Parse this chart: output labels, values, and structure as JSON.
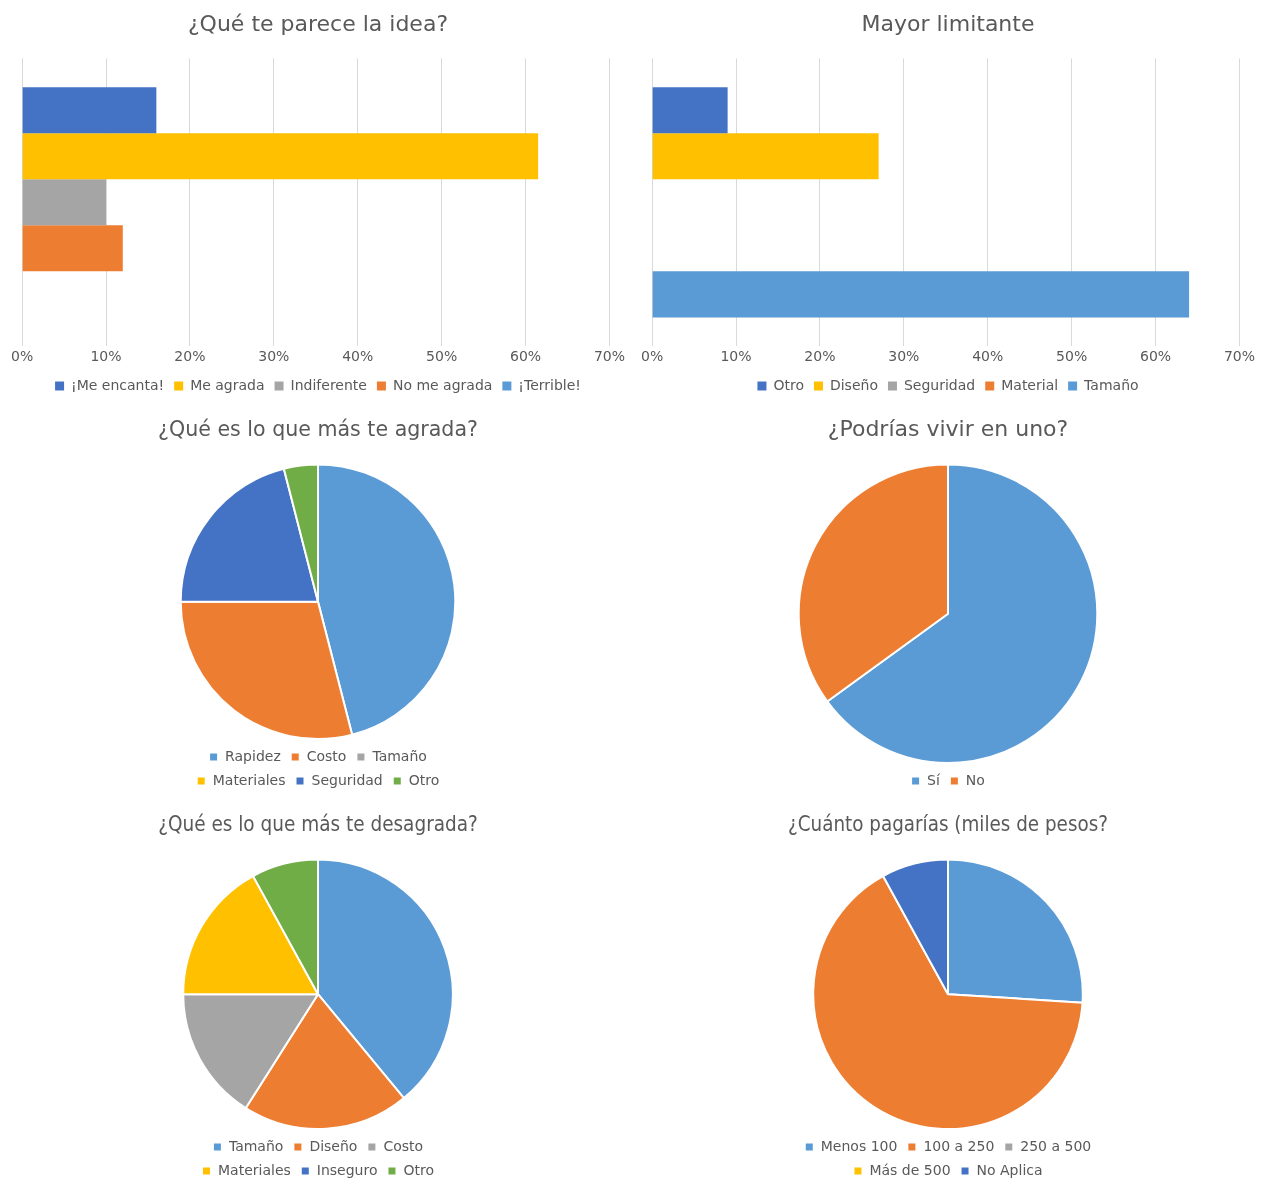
{
  "chart_data": [
    {
      "type": "bar",
      "orientation": "horizontal",
      "title": "¿Qué te parece la idea?",
      "categories": [
        null
      ],
      "legend": "bottom",
      "grid": "x",
      "xlim": [
        0,
        70
      ],
      "xticks": [
        {
          "value": 0,
          "label": "0%"
        },
        {
          "value": 10,
          "label": "10%"
        },
        {
          "value": 20,
          "label": "20%"
        },
        {
          "value": 30,
          "label": "30%"
        },
        {
          "value": 40,
          "label": "40%"
        },
        {
          "value": 50,
          "label": "50%"
        },
        {
          "value": 60,
          "label": "60%"
        },
        {
          "value": 70,
          "label": "70%"
        }
      ],
      "series": [
        {
          "name": "¡Me encanta!",
          "color": "#4472c4",
          "values": [
            16
          ]
        },
        {
          "name": "Me agrada",
          "color": "#ffc000",
          "values": [
            61.5
          ]
        },
        {
          "name": "Indiferente",
          "color": "#a5a5a5",
          "values": [
            10
          ]
        },
        {
          "name": "No me agrada",
          "color": "#ed7d31",
          "values": [
            12
          ]
        },
        {
          "name": "¡Terrible!",
          "color": "#5b9bd5",
          "values": [
            0
          ]
        }
      ]
    },
    {
      "type": "bar",
      "orientation": "horizontal",
      "title": "Mayor limitante",
      "categories": [
        null
      ],
      "legend": "bottom",
      "grid": "x",
      "xlim": [
        0,
        70
      ],
      "xticks": [
        {
          "value": 0,
          "label": "0%"
        },
        {
          "value": 10,
          "label": "10%"
        },
        {
          "value": 20,
          "label": "20%"
        },
        {
          "value": 30,
          "label": "30%"
        },
        {
          "value": 40,
          "label": "40%"
        },
        {
          "value": 50,
          "label": "50%"
        },
        {
          "value": 60,
          "label": "60%"
        },
        {
          "value": 70,
          "label": "70%"
        }
      ],
      "series": [
        {
          "name": "Otro",
          "color": "#4472c4",
          "values": [
            9
          ]
        },
        {
          "name": "Diseño",
          "color": "#ffc000",
          "values": [
            27
          ]
        },
        {
          "name": "Seguridad",
          "color": "#a5a5a5",
          "values": [
            0
          ]
        },
        {
          "name": "Material",
          "color": "#ed7d31",
          "values": [
            0
          ]
        },
        {
          "name": "Tamaño",
          "color": "#5b9bd5",
          "values": [
            64
          ]
        }
      ]
    },
    {
      "type": "pie",
      "title": "¿Qué es lo que más te agrada?",
      "legend": "bottom",
      "categories": [
        "Rapidez",
        "Costo",
        "Tamaño",
        "Materiales",
        "Seguridad",
        "Otro"
      ],
      "values": [
        46,
        29,
        0,
        0,
        21,
        4
      ],
      "colors": [
        "#5b9bd5",
        "#ed7d31",
        "#a5a5a5",
        "#ffc000",
        "#4472c4",
        "#70ad47"
      ]
    },
    {
      "type": "pie",
      "title": "¿Podrías vivir en uno?",
      "legend": "bottom",
      "categories": [
        "Sí",
        "No"
      ],
      "values": [
        65,
        35
      ],
      "colors": [
        "#5b9bd5",
        "#ed7d31"
      ]
    },
    {
      "type": "pie",
      "title": "¿Qué es lo que más te desagrada?",
      "legend": "bottom",
      "categories": [
        "Tamaño",
        "Diseño",
        "Costo",
        "Materiales",
        "Inseguro",
        "Otro"
      ],
      "values": [
        39,
        20,
        16,
        17,
        0,
        8
      ],
      "colors": [
        "#5b9bd5",
        "#ed7d31",
        "#a5a5a5",
        "#ffc000",
        "#4472c4",
        "#70ad47"
      ]
    },
    {
      "type": "pie",
      "title": "¿Cuánto pagarías (miles de pesos?",
      "legend": "bottom",
      "categories": [
        "Menos 100",
        "100 a 250",
        "250 a 500",
        "Más de 500",
        "No Aplica"
      ],
      "values": [
        26,
        66,
        0,
        0,
        8
      ],
      "colors": [
        "#5b9bd5",
        "#ed7d31",
        "#a5a5a5",
        "#ffc000",
        "#4472c4"
      ]
    }
  ]
}
